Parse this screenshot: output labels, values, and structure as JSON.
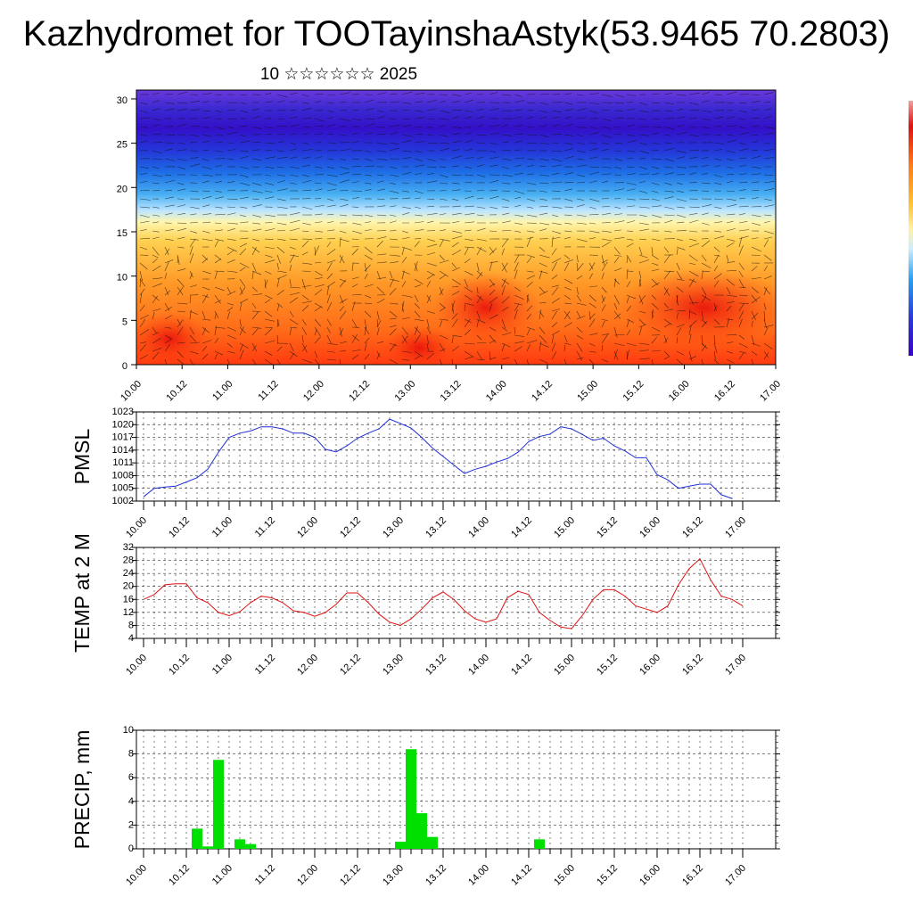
{
  "title": "Kazhydromet for TOOTayinshaAstyk(53.9465 70.2803)",
  "subtitle": "10 ☆☆☆☆☆☆ 2025",
  "colors": {
    "pmsl_line": "#1f2fd8",
    "temp_line": "#e01010",
    "precip_bar": "#00e000",
    "colorbar": [
      "#3a00c8",
      "#5a2ad8",
      "#1a5ae6",
      "#2aa0f0",
      "#9ad8ff",
      "#fff0a0",
      "#ffd040",
      "#ff9a20",
      "#ff5a10",
      "#e01010",
      "#f07070"
    ]
  },
  "chart_data": [
    {
      "type": "heatmap",
      "name": "cross-section",
      "x_tick_labels": [
        "10.00",
        "10.12",
        "11.00",
        "11.12",
        "12.00",
        "12.12",
        "13.00",
        "13.12",
        "14.00",
        "14.12",
        "15.00",
        "15.12",
        "16.00",
        "16.12",
        "17.00"
      ],
      "y_ticks": [
        0,
        5,
        10,
        15,
        20,
        25,
        30
      ],
      "ylim": [
        0,
        31
      ],
      "overlay": "wind vectors"
    },
    {
      "type": "line",
      "ylabel": "PMSL",
      "ylim": [
        1002,
        1023
      ],
      "y_tick_labels": [
        "1002",
        "1005",
        "1008",
        "1011",
        "1014",
        "1017",
        "1020",
        "1023"
      ],
      "x_tick_labels": [
        "10.00",
        "10.12",
        "11.00",
        "11.12",
        "12.00",
        "12.12",
        "13.00",
        "13.12",
        "14.00",
        "14.12",
        "15.00",
        "15.12",
        "16.00",
        "16.12",
        "17.00"
      ],
      "x_step_hours": 3,
      "values": [
        1003,
        1005,
        1005.3,
        1005.5,
        1006.5,
        1007.5,
        1009.5,
        1013.5,
        1017,
        1018,
        1018.5,
        1019.5,
        1019.5,
        1019,
        1018,
        1018,
        1017,
        1014.2,
        1013.6,
        1015,
        1016.8,
        1018,
        1019,
        1021.3,
        1020.3,
        1019.2,
        1017,
        1014.5,
        1012.5,
        1010.5,
        1008.5,
        1009.5,
        1010.2,
        1011.2,
        1012,
        1013.5,
        1016,
        1017.2,
        1017.8,
        1019.5,
        1019,
        1017.7,
        1016.3,
        1016.8,
        1015,
        1013.8,
        1012.2,
        1012.2,
        1008.2,
        1007,
        1005,
        1005.5,
        1006,
        1006,
        1003.5,
        1002.6
      ]
    },
    {
      "type": "line",
      "ylabel": "TEMP at 2 M",
      "ylim": [
        4,
        32
      ],
      "y_tick_labels": [
        "4",
        "8",
        "12",
        "16",
        "20",
        "24",
        "28",
        "32"
      ],
      "x_tick_labels": [
        "10.00",
        "10.12",
        "11.00",
        "11.12",
        "12.00",
        "12.12",
        "13.00",
        "13.12",
        "14.00",
        "14.12",
        "15.00",
        "15.12",
        "16.00",
        "16.12",
        "17.00"
      ],
      "x_step_hours": 3,
      "values": [
        16,
        17.5,
        20.5,
        20.8,
        20.8,
        16.5,
        15,
        12,
        11,
        12.2,
        15,
        17,
        16.5,
        15,
        12.5,
        12,
        10.8,
        12,
        14.5,
        18,
        18,
        15,
        11.5,
        9,
        8,
        10,
        13,
        16.5,
        18.3,
        16,
        12.5,
        10,
        9,
        10,
        16.5,
        18.5,
        17.5,
        12,
        9.5,
        7.5,
        7,
        11,
        16,
        19,
        19,
        17,
        14,
        13,
        12,
        14,
        20.5,
        25.5,
        28.5,
        22,
        17,
        16,
        14
      ]
    },
    {
      "type": "bar",
      "ylabel": "PRECIP, mm",
      "ylim": [
        0,
        10
      ],
      "y_tick_labels": [
        "0",
        "2",
        "4",
        "6",
        "8",
        "10"
      ],
      "x_tick_labels": [
        "10.00",
        "10.12",
        "11.00",
        "11.12",
        "12.00",
        "12.12",
        "13.00",
        "13.12",
        "14.00",
        "14.12",
        "15.00",
        "15.12",
        "16.00",
        "16.12",
        "17.00"
      ],
      "x_step_hours": 3,
      "values": [
        0,
        0,
        0,
        0,
        0,
        1.7,
        0.2,
        7.5,
        0,
        0.8,
        0.4,
        0,
        0,
        0,
        0,
        0,
        0,
        0,
        0,
        0,
        0,
        0,
        0,
        0,
        0.6,
        8.4,
        3,
        1,
        0,
        0,
        0,
        0,
        0,
        0,
        0,
        0,
        0,
        0.8,
        0,
        0,
        0,
        0,
        0,
        0,
        0,
        0,
        0,
        0,
        0,
        0,
        0,
        0,
        0,
        0,
        0,
        0,
        0,
        0,
        0,
        0,
        0,
        0,
        0,
        0,
        0,
        0,
        0,
        0,
        0,
        0,
        0,
        0,
        0,
        0,
        0,
        0,
        0,
        0,
        0,
        0,
        0,
        0,
        0,
        0,
        0,
        0,
        0,
        0.1,
        0,
        0,
        0,
        0,
        0,
        0,
        0,
        0,
        0.05,
        0,
        0
      ]
    }
  ]
}
